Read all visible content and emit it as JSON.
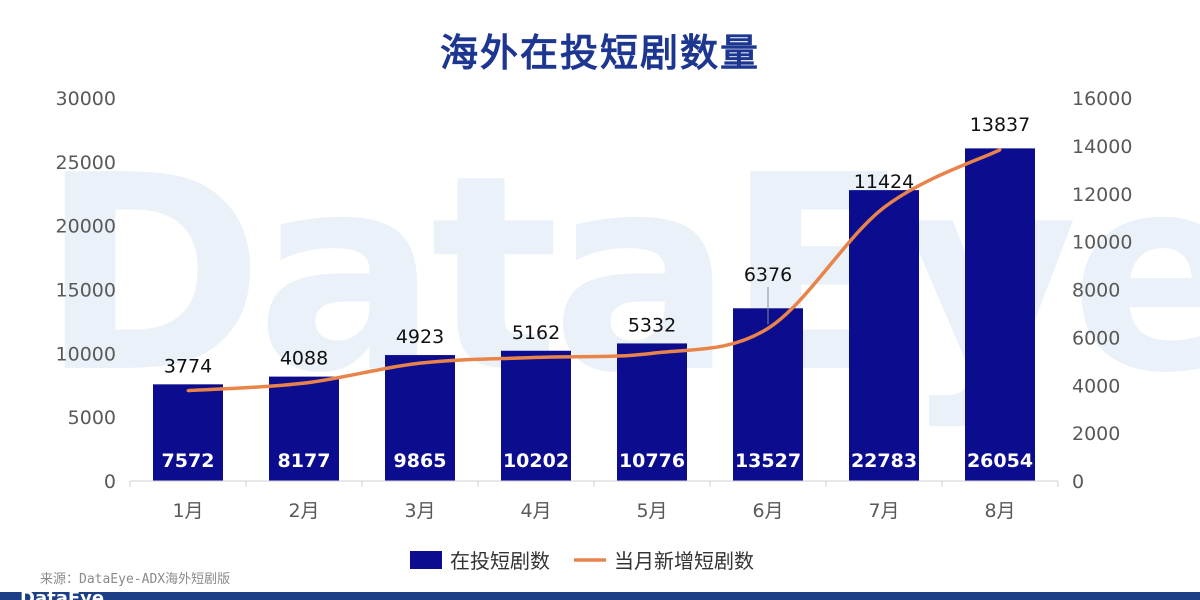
{
  "watermark_text": "DataEye",
  "title": "海外在投短剧数量",
  "source": "来源：DataEye-ADX海外短剧版",
  "logo_text": "DataEye",
  "colors": {
    "bar": "#0b0c8e",
    "line": "#e8834a",
    "title": "#1d3690",
    "axis_text": "#595959",
    "bottom_bar": "#1c3f86"
  },
  "chart_data": {
    "type": "bar",
    "categories": [
      "1月",
      "2月",
      "3月",
      "4月",
      "5月",
      "6月",
      "7月",
      "8月"
    ],
    "series": [
      {
        "name": "在投短剧数",
        "type": "bar",
        "axis": "left",
        "values": [
          7572,
          8177,
          9865,
          10202,
          10776,
          13527,
          22783,
          26054
        ]
      },
      {
        "name": "当月新增短剧数",
        "type": "line",
        "axis": "right",
        "values": [
          3774,
          4088,
          4923,
          5162,
          5332,
          6376,
          11424,
          13837
        ]
      }
    ],
    "title": "海外在投短剧数量",
    "ylim": [
      0,
      30000
    ],
    "y_ticks": [
      "0",
      "5000",
      "10000",
      "15000",
      "20000",
      "25000",
      "30000"
    ],
    "y2lim": [
      0,
      16000
    ],
    "y2_ticks": [
      "0",
      "2000",
      "4000",
      "6000",
      "8000",
      "10000",
      "12000",
      "14000",
      "16000"
    ],
    "grid": false,
    "legend": "bottom"
  }
}
